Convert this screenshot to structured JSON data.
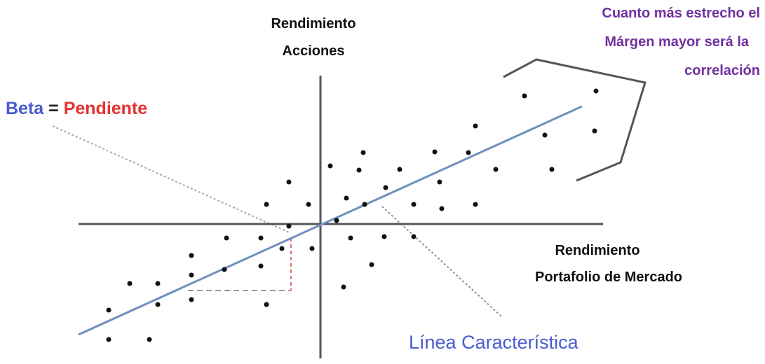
{
  "y_axis_label": [
    "Rendimiento",
    "Acciones"
  ],
  "x_axis_label": [
    "Rendimiento",
    "Portafolio de Mercado"
  ],
  "note": [
    "Cuanto más estrecho el",
    "Márgen mayor será la",
    "correlación"
  ],
  "beta_label": {
    "beta": "Beta",
    "equals": "=",
    "slope": "Pendiente"
  },
  "line_label": "Línea Característica"
}
